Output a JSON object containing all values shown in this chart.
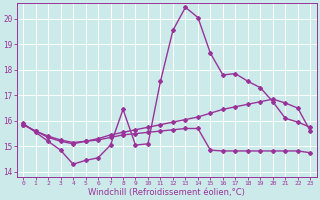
{
  "xlabel": "Windchill (Refroidissement éolien,°C)",
  "bg_color": "#cceaea",
  "line_color": "#993399",
  "grid_color": "#ffffff",
  "xlim": [
    -0.5,
    23.5
  ],
  "ylim": [
    13.8,
    20.6
  ],
  "yticks": [
    14,
    15,
    16,
    17,
    18,
    19,
    20
  ],
  "xticks": [
    0,
    1,
    2,
    3,
    4,
    5,
    6,
    7,
    8,
    9,
    10,
    11,
    12,
    13,
    14,
    15,
    16,
    17,
    18,
    19,
    20,
    21,
    22,
    23
  ],
  "line1_x": [
    0,
    1,
    2,
    3,
    4,
    5,
    6,
    7,
    8,
    9,
    10,
    11,
    12,
    13,
    14,
    15,
    16,
    17,
    18,
    19,
    20,
    21,
    22,
    23
  ],
  "line1_y": [
    15.9,
    15.55,
    15.2,
    14.85,
    14.3,
    14.45,
    14.55,
    15.05,
    16.45,
    15.05,
    15.1,
    17.55,
    19.55,
    20.45,
    20.05,
    18.65,
    17.8,
    17.85,
    17.55,
    17.3,
    16.75,
    16.1,
    15.95,
    15.75
  ],
  "line2_x": [
    0,
    1,
    2,
    3,
    4,
    5,
    6,
    7,
    8,
    9,
    10,
    11,
    12,
    13,
    14,
    15,
    16,
    17,
    18,
    19,
    20,
    21,
    22,
    23
  ],
  "line2_y": [
    15.85,
    15.6,
    15.35,
    15.2,
    15.1,
    15.2,
    15.3,
    15.45,
    15.55,
    15.65,
    15.75,
    15.85,
    15.95,
    16.05,
    16.15,
    16.3,
    16.45,
    16.55,
    16.65,
    16.75,
    16.85,
    16.7,
    16.5,
    15.6
  ],
  "line3_x": [
    0,
    1,
    2,
    3,
    4,
    5,
    6,
    7,
    8,
    9,
    10,
    11,
    12,
    13,
    14,
    15,
    16,
    17,
    18,
    19,
    20,
    21,
    22,
    23
  ],
  "line3_y": [
    15.85,
    15.6,
    15.4,
    15.25,
    15.15,
    15.2,
    15.25,
    15.35,
    15.45,
    15.5,
    15.55,
    15.6,
    15.65,
    15.7,
    15.7,
    14.85,
    14.82,
    14.82,
    14.82,
    14.82,
    14.82,
    14.82,
    14.82,
    14.75
  ],
  "marker": "D",
  "markersize": 2.0,
  "linewidth": 1.0,
  "tick_fontsize": 5.5,
  "xlabel_fontsize": 6.0
}
